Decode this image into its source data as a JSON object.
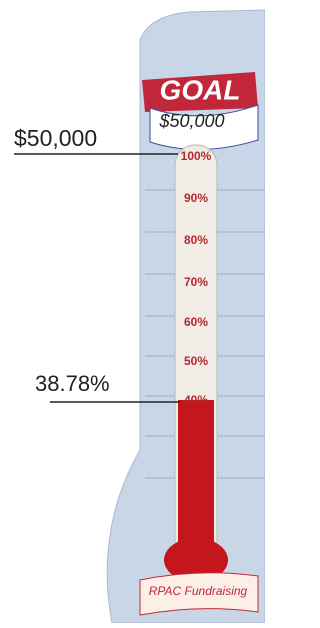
{
  "header": {
    "goal": "GOAL",
    "goal_amount": "$50,000"
  },
  "scale": [
    "100%",
    "90%",
    "80%",
    "70%",
    "60%",
    "50%",
    "40%"
  ],
  "footer": "RPAC Fundraising",
  "overlay": {
    "target": "$50,000",
    "current": "38.78%"
  }
}
